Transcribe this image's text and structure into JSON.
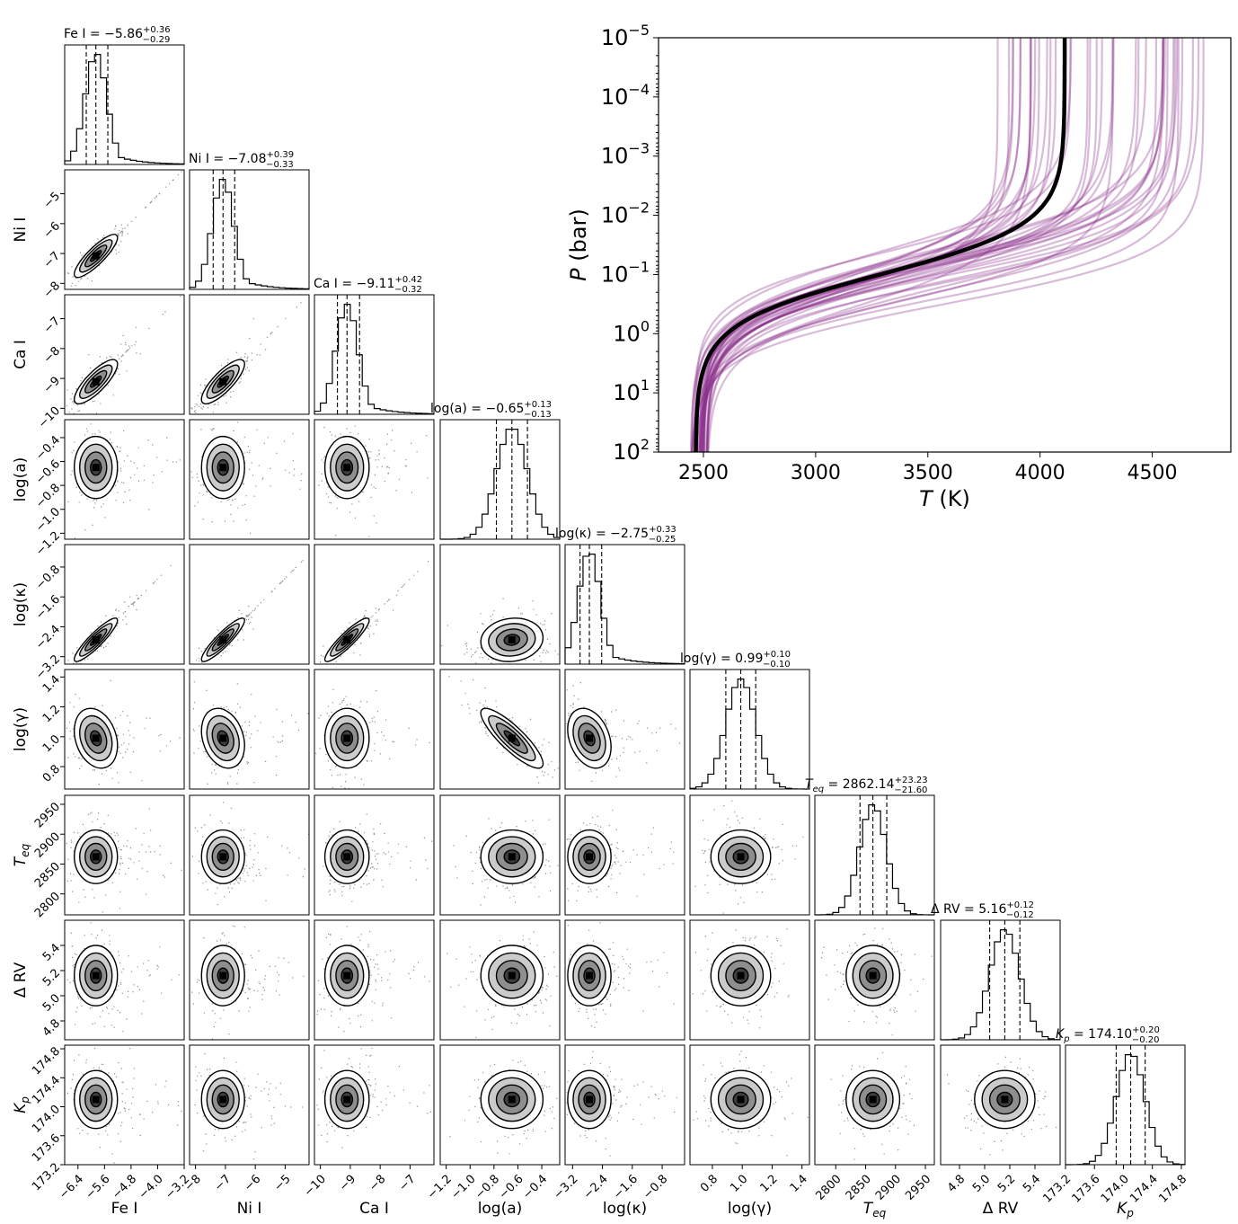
{
  "chart_data": [
    {
      "type": "corner",
      "parameters": [
        {
          "key": "FeI",
          "axis_label": "Fe I",
          "title_name": "Fe I",
          "median": "−5.86",
          "plus": "+0.36",
          "minus": "−0.29",
          "lo": -5.86,
          "q16": -6.15,
          "q50": -5.86,
          "q84": -5.5,
          "range": [
            -6.8,
            -3.2
          ],
          "ticks": [
            "−6.4",
            "−5.6",
            "−4.8",
            "−4.0",
            "−3.2"
          ],
          "tick_values": [
            -6.4,
            -5.6,
            -4.8,
            -4.0,
            -3.2
          ]
        },
        {
          "key": "NiI",
          "axis_label": "Ni I",
          "title_name": "Ni I",
          "median": "−7.08",
          "plus": "+0.39",
          "minus": "−0.33",
          "q16": -7.41,
          "q50": -7.08,
          "q84": -6.69,
          "range": [
            -8.2,
            -4.2
          ],
          "ticks": [
            "−8",
            "−7",
            "−6",
            "−5"
          ],
          "tick_values": [
            -8,
            -7,
            -6,
            -5
          ]
        },
        {
          "key": "CaI",
          "axis_label": "Ca I",
          "title_name": "Ca I",
          "median": "−9.11",
          "plus": "+0.42",
          "minus": "−0.32",
          "q16": -9.43,
          "q50": -9.11,
          "q84": -8.69,
          "range": [
            -10.2,
            -6.2
          ],
          "ticks": [
            "−10",
            "−9",
            "−8",
            "−7"
          ],
          "tick_values": [
            -10,
            -9,
            -8,
            -7
          ]
        },
        {
          "key": "loga",
          "axis_label": "log(a)",
          "title_name": "log(a)",
          "median": "−0.65",
          "plus": "+0.13",
          "minus": "−0.13",
          "q16": -0.78,
          "q50": -0.65,
          "q84": -0.52,
          "range": [
            -1.25,
            -0.25
          ],
          "ticks": [
            "−1.2",
            "−1.0",
            "−0.8",
            "−0.6",
            "−0.4"
          ],
          "tick_values": [
            -1.2,
            -1.0,
            -0.8,
            -0.6,
            -0.4
          ]
        },
        {
          "key": "logk",
          "axis_label": "log(κ)",
          "title_name": "log(κ)",
          "median": "−2.75",
          "plus": "+0.33",
          "minus": "−0.25",
          "q16": -3.0,
          "q50": -2.75,
          "q84": -2.42,
          "range": [
            -3.4,
            -0.2
          ],
          "ticks": [
            "−3.2",
            "−2.4",
            "−1.6",
            "−0.8"
          ],
          "tick_values": [
            -3.2,
            -2.4,
            -1.6,
            -0.8
          ]
        },
        {
          "key": "logg",
          "axis_label": "log(γ)",
          "title_name": "log(γ)",
          "median": "0.99",
          "plus": "+0.10",
          "minus": "−0.10",
          "q16": 0.89,
          "q50": 0.99,
          "q84": 1.09,
          "range": [
            0.65,
            1.45
          ],
          "ticks": [
            "0.8",
            "1.0",
            "1.2",
            "1.4"
          ],
          "tick_values": [
            0.8,
            1.0,
            1.2,
            1.4
          ]
        },
        {
          "key": "Teq",
          "axis_label": "T_eq",
          "title_name": "T_eq",
          "median": "2862.14",
          "plus": "+23.23",
          "minus": "−21.60",
          "q16": 2840.54,
          "q50": 2862.14,
          "q84": 2885.37,
          "range": [
            2765,
            2965
          ],
          "ticks": [
            "2800",
            "2850",
            "2900",
            "2950"
          ],
          "tick_values": [
            2800,
            2850,
            2900,
            2950
          ]
        },
        {
          "key": "dRV",
          "axis_label": "Δ RV",
          "title_name": "Δ RV",
          "median": "5.16",
          "plus": "+0.12",
          "minus": "−0.12",
          "q16": 5.04,
          "q50": 5.16,
          "q84": 5.28,
          "range": [
            4.65,
            5.6
          ],
          "ticks": [
            "4.8",
            "5.0",
            "5.2",
            "5.4"
          ],
          "tick_values": [
            4.8,
            5.0,
            5.2,
            5.4
          ]
        },
        {
          "key": "Kp",
          "axis_label": "K_p",
          "title_name": "K_p",
          "median": "174.10",
          "plus": "+0.20",
          "minus": "−0.20",
          "q16": 173.9,
          "q50": 174.1,
          "q84": 174.3,
          "range": [
            173.2,
            174.85
          ],
          "ticks": [
            "173.2",
            "173.6",
            "174.0",
            "174.4",
            "174.8"
          ],
          "tick_values": [
            173.2,
            173.6,
            174.0,
            174.4,
            174.8
          ]
        }
      ],
      "yaxis_ticks_note": "row y-axis tick labels listed per parameter",
      "y_ticks": {
        "NiI": [
          "−5",
          "−6",
          "−7",
          "−8"
        ],
        "CaI": [
          "−7",
          "−8",
          "−9",
          "−10"
        ],
        "loga": [
          "−0.4",
          "−0.6",
          "−0.8",
          "−1.0",
          "−1.2"
        ],
        "logk": [
          "−0.8",
          "−1.6",
          "−2.4",
          "−3.2"
        ],
        "logg": [
          "1.4",
          "1.2",
          "1.0",
          "0.8"
        ],
        "Teq": [
          "2950",
          "2900",
          "2850",
          "2800"
        ],
        "dRV": [
          "5.4",
          "5.2",
          "5.0",
          "4.8"
        ],
        "Kp": [
          "174.8",
          "174.4",
          "174.0",
          "173.6",
          "173.2"
        ]
      },
      "correlations": {
        "NiI|FeI": 0.85,
        "CaI|FeI": 0.8,
        "CaI|NiI": 0.8,
        "logk|FeI": 0.9,
        "logk|NiI": 0.9,
        "logk|CaI": 0.9,
        "logk|loga": 0.1,
        "logg|FeI": -0.25,
        "logg|NiI": -0.25,
        "logg|loga": -0.85,
        "logg|logk": -0.3
      }
    },
    {
      "type": "line",
      "xlabel": "T (K)",
      "ylabel": "P (bar)",
      "x_ticks": [
        "2500",
        "3000",
        "3500",
        "4000",
        "4500"
      ],
      "x_tick_values": [
        2500,
        3000,
        3500,
        4000,
        4500
      ],
      "xlim": [
        2300,
        4850
      ],
      "y_scale": "log",
      "ylim_log10": [
        2,
        -5
      ],
      "y_ticks": [
        {
          "base": "10",
          "exp": "−5",
          "value": -5
        },
        {
          "base": "10",
          "exp": "−4",
          "value": -4
        },
        {
          "base": "10",
          "exp": "−3",
          "value": -3
        },
        {
          "base": "10",
          "exp": "−2",
          "value": -2
        },
        {
          "base": "10",
          "exp": "−1",
          "value": -1
        },
        {
          "base": "10",
          "exp": "0",
          "value": 0
        },
        {
          "base": "10",
          "exp": "1",
          "value": 1
        },
        {
          "base": "10",
          "exp": "2",
          "value": 2
        }
      ],
      "best_fit_color": "#000000",
      "samples_color": "#8a2a8a",
      "best_fit": {
        "T_deep": 2465,
        "T_top": 4110,
        "log10P_transition": -1.0
      }
    }
  ]
}
